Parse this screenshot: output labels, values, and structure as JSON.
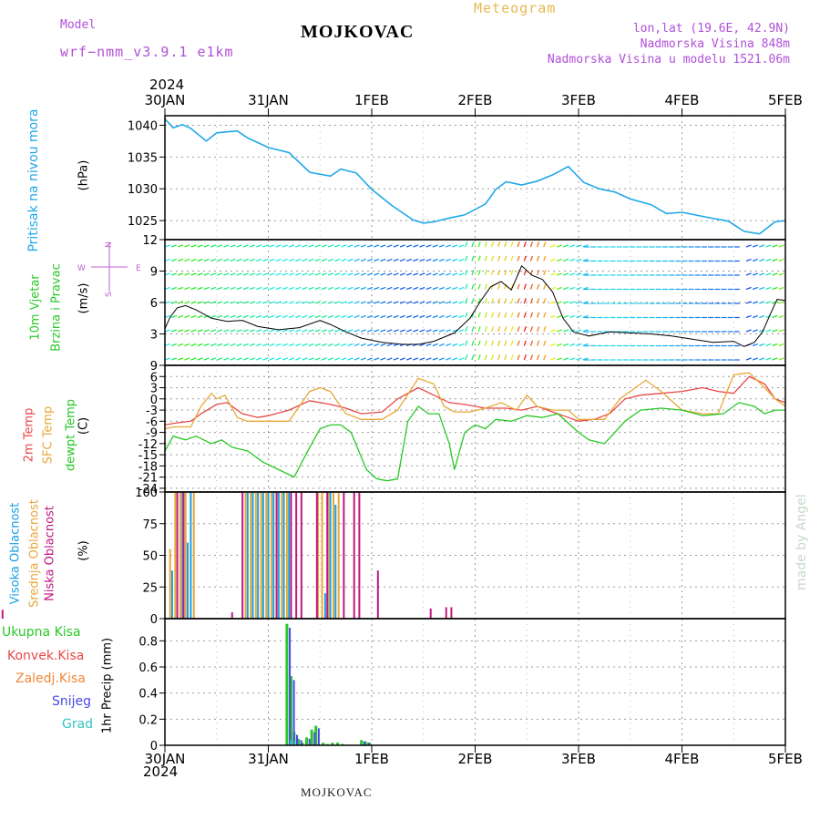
{
  "header": {
    "model_label": "Model",
    "model_name": "wrf−nmm_v3.9.1  e1km",
    "station": "MOJKOVAC",
    "meteogram": "Meteogram",
    "lonlat": "lon,lat (19.6E, 42.9N)",
    "altitude": "Nadmorska Visina 848m",
    "model_altitude": "Nadmorska Visina u modelu 1521.06m",
    "year_top": "2024",
    "year_bottom": "2024",
    "footer": "MOJKOVAC",
    "credit": "made by Angel"
  },
  "colors": {
    "pressure": "#20a8e8",
    "temp2m": "#e84848",
    "sfc": "#e8a838",
    "dewpt": "#28c828",
    "high_cloud": "#18a0e0",
    "mid_cloud": "#e8a838",
    "low_cloud": "#c01880",
    "precip_total": "#28c828",
    "convective": "#e84848",
    "freezing": "#f08838",
    "snow": "#4848e8",
    "graupel": "#30c8c0"
  },
  "panel_labels": {
    "pressure": [
      "Pritisak na nivou mora",
      "(hPa)"
    ],
    "wind": [
      "10m Vjetar",
      "Brzina i Pravac",
      "(m/s)"
    ],
    "compass": [
      "N",
      "S",
      "W",
      "E"
    ],
    "temp": [
      "2m Temp",
      "SFC Temp",
      "dewpt Temp",
      "(C)"
    ],
    "cloud": [
      "Visoka Oblacnost",
      "Srednja Oblacnost",
      "Niska Oblacnost",
      "(%)"
    ],
    "precip": [
      "Ukupna Kisa",
      "Konvek.Kisa",
      "Zaledj.Kisa",
      "Snijeg",
      "Grad",
      "1hr Precip (mm)"
    ]
  },
  "chart_data": [
    {
      "type": "line",
      "title": "",
      "ylabel": "Pritisak na nivou mora (hPa)",
      "x_ticks": [
        "30JAN",
        "31JAN",
        "1FEB",
        "2FEB",
        "3FEB",
        "4FEB",
        "5FEB"
      ],
      "ylim": [
        1022,
        1041.5
      ],
      "y_ticks": [
        1025,
        1030,
        1035,
        1040
      ],
      "series": [
        {
          "name": "Pritisak na nivou mora",
          "x_days": [
            0,
            0.08,
            0.17,
            0.25,
            0.4,
            0.5,
            0.7,
            0.8,
            1.0,
            1.2,
            1.4,
            1.6,
            1.7,
            1.85,
            2.0,
            2.2,
            2.4,
            2.5,
            2.6,
            2.75,
            2.9,
            3.1,
            3.2,
            3.3,
            3.45,
            3.6,
            3.75,
            3.9,
            4.05,
            4.2,
            4.35,
            4.5,
            4.7,
            4.85,
            5.0,
            5.25,
            5.45,
            5.6,
            5.75,
            5.9,
            6.0
          ],
          "values": [
            1041,
            1039.6,
            1040.1,
            1039.5,
            1037.5,
            1038.8,
            1039.1,
            1038,
            1036.5,
            1035.7,
            1032.6,
            1032,
            1033.1,
            1032.5,
            1029.9,
            1027.3,
            1025.1,
            1024.6,
            1024.8,
            1025.4,
            1025.9,
            1027.6,
            1029.9,
            1031.1,
            1030.6,
            1031.2,
            1032.2,
            1033.5,
            1031,
            1030,
            1029.5,
            1028.4,
            1027.5,
            1026.1,
            1026.3,
            1025.5,
            1024.9,
            1023.3,
            1022.9,
            1024.8,
            1025
          ]
        }
      ]
    },
    {
      "type": "line",
      "title": "",
      "ylabel": "10m Vjetar Brzina i Pravac (m/s)",
      "x_ticks": [
        "30JAN",
        "31JAN",
        "1FEB",
        "2FEB",
        "3FEB",
        "4FEB",
        "5FEB"
      ],
      "ylim": [
        0,
        12
      ],
      "y_ticks": [
        3,
        6,
        9,
        12
      ],
      "series": [
        {
          "name": "10m Vjetar Brzina",
          "x_days": [
            0,
            0.05,
            0.12,
            0.2,
            0.3,
            0.45,
            0.6,
            0.75,
            0.9,
            1.1,
            1.3,
            1.5,
            1.6,
            1.75,
            1.9,
            2.1,
            2.3,
            2.45,
            2.6,
            2.8,
            2.95,
            3.05,
            3.15,
            3.25,
            3.35,
            3.45,
            3.55,
            3.65,
            3.75,
            3.85,
            3.95,
            4.1,
            4.3,
            4.5,
            4.7,
            4.9,
            5.1,
            5.3,
            5.5,
            5.6,
            5.7,
            5.78,
            5.85,
            5.92,
            6.0
          ],
          "values": [
            3.5,
            4.6,
            5.5,
            5.7,
            5.3,
            4.5,
            4.2,
            4.3,
            3.7,
            3.4,
            3.6,
            4.3,
            3.9,
            3.2,
            2.6,
            2.2,
            2.0,
            2.0,
            2.3,
            3.1,
            4.5,
            6.1,
            7.5,
            8.0,
            7.2,
            9.5,
            8.6,
            8.2,
            7.0,
            4.5,
            3.2,
            2.8,
            3.2,
            3.1,
            3.0,
            2.8,
            2.5,
            2.2,
            2.3,
            1.8,
            2.2,
            3.2,
            4.8,
            6.3,
            6.2
          ]
        }
      ]
    },
    {
      "type": "line",
      "title": "",
      "ylabel": "(C)",
      "x_ticks": [
        "30JAN",
        "31JAN",
        "1FEB",
        "2FEB",
        "3FEB",
        "4FEB",
        "5FEB"
      ],
      "ylim": [
        -25,
        9
      ],
      "y_ticks": [
        9,
        6,
        3,
        0,
        -3,
        -6,
        -9,
        -12,
        -15,
        -18,
        -21,
        -24
      ],
      "series": [
        {
          "name": "2m Temp",
          "x_days": [
            0,
            0.1,
            0.25,
            0.35,
            0.5,
            0.6,
            0.75,
            0.9,
            1.0,
            1.2,
            1.4,
            1.6,
            1.75,
            1.9,
            2.1,
            2.25,
            2.45,
            2.6,
            2.75,
            2.9,
            3.1,
            3.3,
            3.45,
            3.6,
            3.75,
            3.9,
            4.0,
            4.15,
            4.3,
            4.45,
            4.6,
            4.8,
            5.0,
            5.2,
            5.35,
            5.5,
            5.65,
            5.8,
            5.9,
            6.0
          ],
          "values": [
            -7,
            -6.5,
            -6,
            -4,
            -1.5,
            -1,
            -4,
            -5,
            -4.5,
            -3,
            -0.5,
            -1.5,
            -2.5,
            -4,
            -3.5,
            0,
            3,
            1,
            -1,
            -1.5,
            -2.5,
            -2.5,
            -3,
            -2,
            -3.5,
            -5,
            -6,
            -5.5,
            -4,
            0,
            1,
            1.5,
            2,
            3,
            2,
            1.5,
            6,
            4,
            0,
            -1
          ]
        },
        {
          "name": "SFC Temp",
          "x_days": [
            0,
            0.1,
            0.25,
            0.35,
            0.45,
            0.5,
            0.58,
            0.7,
            0.8,
            0.9,
            1.0,
            1.2,
            1.4,
            1.5,
            1.6,
            1.75,
            1.9,
            2.0,
            2.1,
            2.25,
            2.45,
            2.6,
            2.7,
            2.8,
            2.95,
            3.1,
            3.25,
            3.4,
            3.5,
            3.6,
            3.75,
            3.9,
            4.0,
            4.1,
            4.25,
            4.4,
            4.55,
            4.65,
            4.8,
            5.0,
            5.2,
            5.35,
            5.5,
            5.65,
            5.8,
            5.9,
            6.0
          ],
          "values": [
            -8,
            -7.5,
            -7.5,
            -2,
            1.5,
            0,
            1,
            -5,
            -6,
            -6,
            -6,
            -6,
            2,
            3,
            2,
            -4,
            -5.5,
            -5.5,
            -5.5,
            -3,
            5.5,
            4,
            -2,
            -3.5,
            -3.5,
            -2.5,
            -1,
            -3,
            1,
            -2,
            -3,
            -3,
            -5.5,
            -5.5,
            -5.5,
            0,
            3,
            5,
            2,
            -3,
            -4,
            -4,
            6.5,
            7,
            3,
            0,
            -2
          ]
        },
        {
          "name": "dewpt Temp",
          "x_days": [
            0,
            0.08,
            0.2,
            0.3,
            0.45,
            0.55,
            0.65,
            0.8,
            0.95,
            1.1,
            1.25,
            1.4,
            1.5,
            1.6,
            1.7,
            1.8,
            1.95,
            2.05,
            2.15,
            2.25,
            2.35,
            2.45,
            2.55,
            2.65,
            2.75,
            2.8,
            2.9,
            3.0,
            3.1,
            3.2,
            3.35,
            3.5,
            3.65,
            3.8,
            4.0,
            4.1,
            4.25,
            4.45,
            4.6,
            4.8,
            5.0,
            5.2,
            5.4,
            5.55,
            5.7,
            5.8,
            5.9,
            6.0
          ],
          "values": [
            -14,
            -10,
            -11,
            -10,
            -12,
            -11,
            -13,
            -14,
            -17,
            -19,
            -21,
            -13,
            -8,
            -7,
            -7,
            -9,
            -19,
            -21.5,
            -22,
            -21.5,
            -6,
            -2,
            -4,
            -4,
            -12,
            -19,
            -9,
            -7,
            -8,
            -5.5,
            -6,
            -4.5,
            -5,
            -4,
            -9,
            -11,
            -12,
            -6,
            -3,
            -2.5,
            -3,
            -4.5,
            -4,
            -1,
            -2,
            -4,
            -3,
            -3
          ]
        }
      ]
    },
    {
      "type": "bar",
      "title": "",
      "ylabel": "(%)",
      "x_ticks": [
        "30JAN",
        "31JAN",
        "1FEB",
        "2FEB",
        "3FEB",
        "4FEB",
        "5FEB"
      ],
      "ylim": [
        0,
        100
      ],
      "y_ticks": [
        0,
        25,
        50,
        75,
        100
      ],
      "series": [
        {
          "name": "Visoka Oblacnost",
          "points": [
            [
              2.07,
              38
            ],
            [
              2.17,
              100
            ],
            [
              2.22,
              60
            ],
            [
              2.25,
              100
            ],
            [
              2.8,
              100
            ],
            [
              2.85,
              100
            ],
            [
              2.9,
              100
            ],
            [
              2.95,
              100
            ],
            [
              3.0,
              100
            ],
            [
              3.05,
              100
            ],
            [
              3.1,
              100
            ],
            [
              3.15,
              100
            ],
            [
              3.2,
              100
            ],
            [
              3.55,
              20
            ],
            [
              3.6,
              100
            ],
            [
              3.65,
              90
            ]
          ]
        },
        {
          "name": "Srednja Oblacnost",
          "points": [
            [
              2.05,
              55
            ],
            [
              2.1,
              100
            ],
            [
              2.15,
              100
            ],
            [
              2.2,
              100
            ],
            [
              2.28,
              100
            ],
            [
              2.78,
              100
            ],
            [
              2.83,
              100
            ],
            [
              2.88,
              100
            ],
            [
              2.93,
              100
            ],
            [
              2.98,
              100
            ],
            [
              3.03,
              100
            ],
            [
              3.08,
              100
            ],
            [
              3.13,
              100
            ],
            [
              3.18,
              100
            ],
            [
              3.48,
              100
            ],
            [
              3.52,
              100
            ],
            [
              3.58,
              100
            ],
            [
              3.63,
              100
            ],
            [
              3.68,
              100
            ]
          ]
        },
        {
          "name": "Niska Oblacnost",
          "points": [
            [
              0.07,
              5
            ],
            [
              0.22,
              3
            ],
            [
              0.25,
              5
            ],
            [
              0.37,
              37
            ],
            [
              0.43,
              7
            ],
            [
              2.12,
              100
            ],
            [
              2.18,
              100
            ],
            [
              2.65,
              5
            ],
            [
              2.75,
              100
            ],
            [
              3.08,
              100
            ],
            [
              3.22,
              100
            ],
            [
              3.27,
              100
            ],
            [
              3.32,
              100
            ],
            [
              3.47,
              100
            ],
            [
              3.57,
              100
            ],
            [
              3.73,
              100
            ],
            [
              3.83,
              100
            ],
            [
              3.88,
              100
            ],
            [
              4.06,
              38
            ],
            [
              4.57,
              8
            ],
            [
              4.72,
              9
            ],
            [
              4.77,
              9
            ]
          ]
        }
      ]
    },
    {
      "type": "bar",
      "title": "",
      "ylabel": "1hr Precip (mm)",
      "x_ticks": [
        "30JAN",
        "31JAN",
        "1FEB",
        "2FEB",
        "3FEB",
        "4FEB",
        "5FEB"
      ],
      "ylim": [
        0,
        0.97
      ],
      "y_ticks": [
        0,
        0.2,
        0.4,
        0.6,
        0.8
      ],
      "series": [
        {
          "name": "Ukupna Kisa",
          "points": [
            [
              3.18,
              0.93
            ],
            [
              3.22,
              0.53
            ],
            [
              3.25,
              0.1
            ],
            [
              3.29,
              0.05
            ],
            [
              3.33,
              0.02
            ],
            [
              3.37,
              0.06
            ],
            [
              3.42,
              0.12
            ],
            [
              3.46,
              0.15
            ],
            [
              3.53,
              0.02
            ],
            [
              3.57,
              0.01
            ],
            [
              3.62,
              0.02
            ],
            [
              3.67,
              0.02
            ],
            [
              3.72,
              0.01
            ],
            [
              3.9,
              0.04
            ],
            [
              3.94,
              0.03
            ],
            [
              3.98,
              0.02
            ]
          ]
        },
        {
          "name": "Snijeg",
          "points": [
            [
              3.19,
              0.9
            ],
            [
              3.23,
              0.5
            ],
            [
              3.26,
              0.08
            ],
            [
              3.3,
              0.04
            ],
            [
              3.38,
              0.05
            ],
            [
              3.43,
              0.1
            ],
            [
              3.47,
              0.13
            ],
            [
              3.91,
              0.03
            ],
            [
              3.95,
              0.02
            ]
          ]
        },
        {
          "name": "Grad",
          "points": [
            [
              3.2,
              0.04
            ],
            [
              3.24,
              0.03
            ]
          ]
        }
      ]
    }
  ]
}
